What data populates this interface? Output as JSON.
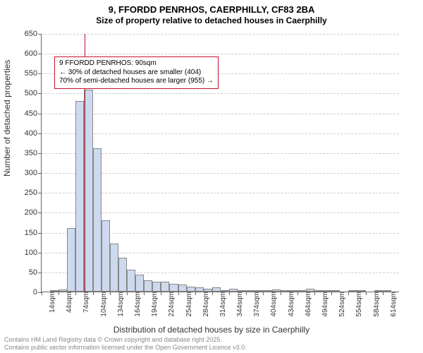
{
  "title_line1": "9, FFORDD PENRHOS, CAERPHILLY, CF83 2BA",
  "title_line2": "Size of property relative to detached houses in Caerphilly",
  "y_axis_label": "Number of detached properties",
  "x_axis_label": "Distribution of detached houses by size in Caerphilly",
  "footer_line1": "Contains HM Land Registry data © Crown copyright and database right 2025.",
  "footer_line2": "Contains public sector information licensed under the Open Government Licence v3.0.",
  "chart": {
    "type": "histogram",
    "background_color": "#ffffff",
    "grid_color": "#cccccc",
    "axis_color": "#666666",
    "bar_fill": "#cdd9ee",
    "bar_border": "#888888",
    "ref_line_color": "#c8102e",
    "annotation_border": "#c8102e",
    "ylim": [
      0,
      650
    ],
    "ytick_step": 50,
    "x_start": 14,
    "x_step": 15,
    "x_count": 42,
    "x_tick_step": 30,
    "x_tick_unit": "sqm",
    "bars": [
      0,
      2,
      5,
      160,
      480,
      508,
      360,
      180,
      120,
      85,
      55,
      42,
      28,
      25,
      25,
      20,
      18,
      12,
      10,
      8,
      10,
      2,
      8,
      2,
      2,
      1,
      1,
      5,
      3,
      2,
      2,
      8,
      1,
      1,
      1,
      0,
      1,
      1,
      0,
      1,
      1,
      0
    ],
    "ref_line_x": 90,
    "annotation_line1": "9 FFORDD PENRHOS: 90sqm",
    "annotation_line2": "← 30% of detached houses are smaller (404)",
    "annotation_line3": "70% of semi-detached houses are larger (955) →",
    "title_fontsize": 13,
    "subtitle_fontsize": 12,
    "axis_label_fontsize": 12,
    "tick_fontsize": 11,
    "annotation_fontsize": 10
  }
}
